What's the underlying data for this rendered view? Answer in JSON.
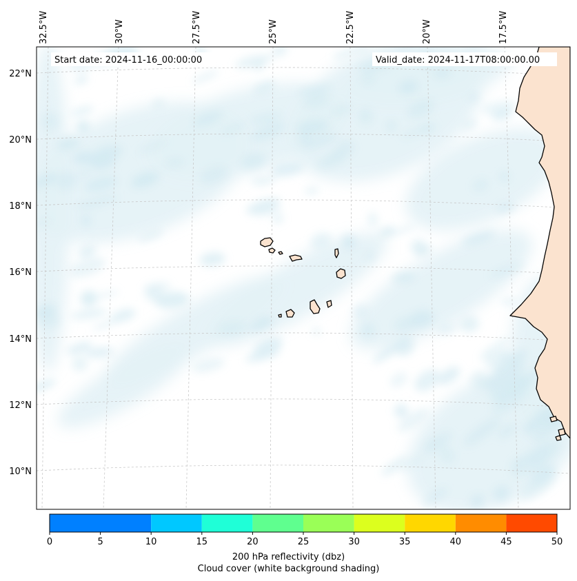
{
  "map": {
    "start_date": "Start date: 2024-11-16_00:00:00",
    "valid_date": "Valid_date: 2024-11-17T08:00:00.00",
    "lon_labels": [
      "32.5°W",
      "30°W",
      "27.5°W",
      "25°W",
      "22.5°W",
      "20°W",
      "17.5°W"
    ],
    "lat_labels": [
      "22°N",
      "20°N",
      "18°N",
      "16°N",
      "14°N",
      "12°N",
      "10°N"
    ],
    "land_color": "#fbe3cf",
    "cloud_color": "#cde7f0",
    "coast_color": "#000000",
    "grid": "dashed"
  },
  "colorbar": {
    "ticks": [
      "0",
      "5",
      "10",
      "15",
      "20",
      "25",
      "30",
      "35",
      "40",
      "45",
      "50"
    ],
    "bins": [
      {
        "from": 0,
        "to": 10,
        "color": "#0080ff"
      },
      {
        "from": 10,
        "to": 15,
        "color": "#00c8ff"
      },
      {
        "from": 15,
        "to": 20,
        "color": "#1fffd7"
      },
      {
        "from": 20,
        "to": 25,
        "color": "#5fff8f"
      },
      {
        "from": 25,
        "to": 30,
        "color": "#9aff57"
      },
      {
        "from": 30,
        "to": 35,
        "color": "#dcff1e"
      },
      {
        "from": 35,
        "to": 40,
        "color": "#ffd700"
      },
      {
        "from": 40,
        "to": 45,
        "color": "#ff8c00"
      },
      {
        "from": 45,
        "to": 50,
        "color": "#ff4a00"
      }
    ],
    "caption_line1": "200 hPa reflectivity (dbz)",
    "caption_line2": "Cloud cover (white background shading)"
  }
}
